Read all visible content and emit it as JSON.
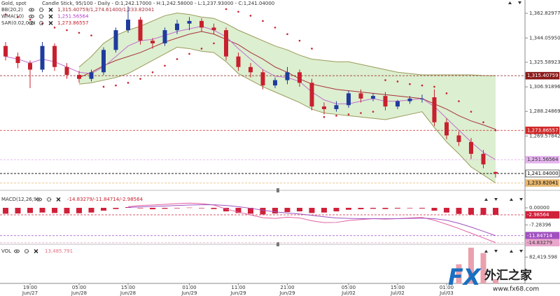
{
  "chart_data": [
    {
      "type": "candlestick",
      "title": "Gold, spot",
      "subtitle": "Candle Stick, 95/100 - Daily - O:1,242.17000 - H:1,242.58000 - L:1,237.93000 - C:1,241.04000",
      "categories": [
        null,
        null,
        [
          "19:00",
          "Jun/27"
        ],
        null,
        null,
        null,
        [
          "05:00",
          "Jun/28"
        ],
        null,
        null,
        null,
        [
          "15:00",
          "Jun/28"
        ],
        null,
        null,
        null,
        null,
        [
          "01:00",
          "Jun/29"
        ],
        null,
        null,
        null,
        [
          "11:00",
          "Jun/29"
        ],
        null,
        null,
        null,
        [
          "21:00",
          "Jun/29"
        ],
        null,
        null,
        null,
        null,
        [
          "05:00",
          "Jul/02"
        ],
        null,
        null,
        null,
        [
          "15:00",
          "Jul/02"
        ],
        null,
        null,
        null,
        [
          "01:00",
          "Jul/03"
        ],
        null,
        null,
        null,
        null
      ],
      "open": [
        1338,
        1330,
        1325,
        1320,
        1338,
        1322,
        1316,
        1313,
        1318,
        1335,
        1350,
        1358,
        1342,
        1340,
        1350,
        1355,
        1357,
        1352,
        1350,
        1330,
        1322,
        1318,
        1308,
        1312,
        1318,
        1310,
        1292,
        1290,
        1293,
        1302,
        1298,
        1300,
        1292,
        1296,
        1298,
        1299,
        1280,
        1270,
        1265,
        1256,
        1242.17
      ],
      "high": [
        1341,
        1333,
        1327,
        1341,
        1340,
        1325,
        1319,
        1320,
        1337,
        1352,
        1368,
        1360,
        1344,
        1352,
        1358,
        1360,
        1359,
        1355,
        1352,
        1333,
        1325,
        1320,
        1314,
        1322,
        1320,
        1313,
        1295,
        1296,
        1304,
        1305,
        1302,
        1303,
        1297,
        1300,
        1301,
        1305,
        1283,
        1273,
        1268,
        1259,
        1242.58
      ],
      "low": [
        1327,
        1321,
        1306,
        1318,
        1319,
        1313,
        1310,
        1311,
        1316,
        1333,
        1348,
        1339,
        1336,
        1338,
        1347,
        1350,
        1349,
        1347,
        1327,
        1319,
        1314,
        1305,
        1306,
        1309,
        1307,
        1289,
        1286,
        1288,
        1291,
        1295,
        1296,
        1289,
        1290,
        1294,
        1295,
        1277,
        1267,
        1262,
        1252,
        1245,
        1237.93
      ],
      "close": [
        1330,
        1325,
        1320,
        1338,
        1322,
        1316,
        1313,
        1318,
        1335,
        1350,
        1358,
        1342,
        1340,
        1350,
        1355,
        1357,
        1352,
        1350,
        1330,
        1322,
        1318,
        1308,
        1312,
        1318,
        1310,
        1292,
        1290,
        1293,
        1302,
        1298,
        1300,
        1292,
        1296,
        1298,
        1298,
        1280,
        1270,
        1265,
        1256,
        1248,
        1241.04
      ],
      "up_color": "#1f3c9c",
      "down_color": "#c8202e",
      "ylim": [
        1230.38,
        1372.94
      ],
      "yticks": [
        {
          "value": 1362.82977,
          "label": "1,362.82977"
        },
        {
          "value": 1344.0595,
          "label": "1,344.05950"
        },
        {
          "value": 1325.58923,
          "label": "1,325.58923"
        },
        {
          "value": 1306.91896,
          "label": "1,306.91896"
        },
        {
          "value": 1288.24869,
          "label": "1,288.24869"
        },
        {
          "value": 1269.57842,
          "label": "1,269.57842"
        }
      ],
      "legend": [
        {
          "name": "BB(20,2)",
          "readout": "1,315.40759/1,274.61400/1,233.82041",
          "color": "#a8323c"
        },
        {
          "name": "WMA(10)",
          "readout": "1,251.56564",
          "color": "#b03cc8"
        },
        {
          "name": "SAR(0.02,0.2)",
          "readout": "1,273.86557",
          "color": "#c8202e"
        }
      ],
      "bands": {
        "fill": "#dcefd0",
        "edge": "#9a9a5a",
        "middle_color": "#a8323c",
        "upper": [
          null,
          null,
          null,
          null,
          null,
          null,
          1322,
          1330,
          1340,
          1346,
          1350,
          1353,
          1357,
          1361,
          1363,
          1362,
          1360,
          1359,
          1355,
          1350,
          1346,
          1342,
          1338,
          1335,
          1331,
          1328,
          1327,
          1326,
          1326,
          1324,
          1322,
          1320,
          1318,
          1317,
          1316,
          1316,
          1316,
          1316,
          1316,
          1315.5,
          1315.40759
        ],
        "middle": [
          null,
          null,
          null,
          null,
          null,
          null,
          1314,
          1318,
          1323,
          1327,
          1330,
          1333,
          1337,
          1341,
          1344,
          1347,
          1349,
          1347,
          1343,
          1339,
          1333,
          1328,
          1322,
          1318,
          1313,
          1309,
          1307,
          1305,
          1304,
          1303,
          1302,
          1301,
          1300,
          1299,
          1298,
          1294,
          1290,
          1285,
          1281,
          1278,
          1274.614
        ],
        "lower": [
          null,
          null,
          null,
          null,
          null,
          null,
          1309,
          1310,
          1312,
          1314,
          1317,
          1322,
          1327,
          1332,
          1337,
          1336,
          1334,
          1333,
          1326,
          1317,
          1312,
          1307,
          1303,
          1299,
          1295,
          1290,
          1287,
          1286,
          1285,
          1284,
          1283,
          1282,
          1284,
          1286,
          1288,
          1276,
          1265,
          1256,
          1246,
          1240,
          1233.82041
        ]
      },
      "lines": [
        {
          "color": "#c070d0",
          "values": [
            1330,
            1328,
            1325,
            1328,
            1326,
            1322,
            1318,
            1317,
            1322,
            1330,
            1338,
            1342,
            1343,
            1346,
            1349,
            1351,
            1353,
            1350,
            1345,
            1336,
            1328,
            1320,
            1315,
            1314,
            1311,
            1303,
            1297,
            1294,
            1294,
            1296,
            1298,
            1296,
            1296,
            1297,
            1298,
            1292,
            1283,
            1274,
            1265,
            1257,
            1251.56564
          ]
        }
      ],
      "dots": {
        "color": "#c8202e",
        "values": [
          1362,
          1360,
          1358,
          1355,
          1352,
          1350,
          1348,
          1346,
          1307,
          1308,
          1310,
          1313,
          1318,
          1323,
          1328,
          1332,
          1336,
          1340,
          1366,
          1364,
          1361,
          1357,
          1352,
          1347,
          1342,
          1336,
          1284,
          1285,
          1286,
          1287,
          1288,
          1312,
          1311,
          1309,
          1308,
          1307,
          1302,
          1296,
          1288,
          1280,
          1273.86557
        ]
      },
      "markers": [
        {
          "value": 1315.40759,
          "label": "1,315.40759",
          "color": "#8b1a1a",
          "text_color": "#ffffff"
        },
        {
          "value": 1273.86557,
          "label": "1,273.86557",
          "color": "#d02828",
          "text_color": "#ffffff"
        },
        {
          "value": 1251.56564,
          "label": "1,251.56564",
          "color": "#e4b4ee",
          "text_color": "#333333"
        },
        {
          "value": 1241.04,
          "label": "1,241.04000",
          "color": "#ffffff",
          "text_color": "#000000",
          "line_color": "#000000"
        },
        {
          "value": 1233.82041,
          "label": "1,233.82041",
          "color": "#e8b870",
          "text_color": "#000000"
        }
      ]
    },
    {
      "type": "bar",
      "title": "MACD(12,26,9)",
      "readout": "-14.83279/-11.84714/-2.98564",
      "readout_color": "#c8202e",
      "color": "#d0203a",
      "values": [
        -2.5,
        -2.4,
        -2.2,
        -2.0,
        -2.2,
        -2.4,
        -2.3,
        -2.0,
        -1.2,
        -0.5,
        0.3,
        -0.2,
        -0.6,
        -0.4,
        -0.2,
        0.1,
        -0.2,
        -0.5,
        -1.5,
        -2.2,
        -2.5,
        -2.8,
        -2.4,
        -1.8,
        -1.5,
        -2.2,
        -2.0,
        -1.5,
        -0.8,
        -0.6,
        -0.4,
        -0.5,
        -0.3,
        -0.2,
        -0.3,
        -1.2,
        -2.0,
        -2.6,
        -2.9,
        -3.0,
        -2.98564
      ],
      "lines": [
        {
          "color": "#e060a0",
          "values": [
            null,
            null,
            null,
            null,
            null,
            null,
            null,
            null,
            null,
            null,
            0.5,
            1.0,
            1.2,
            1.5,
            1.8,
            2.0,
            1.8,
            1.2,
            -0.5,
            -1.8,
            -3.0,
            -4.2,
            -4.5,
            -4.0,
            -4.3,
            -5.5,
            -6.3,
            -6.2,
            -5.4,
            -5.0,
            -4.6,
            -4.8,
            -4.6,
            -4.3,
            -4.1,
            -5.3,
            -7.0,
            -8.8,
            -10.8,
            -12.8,
            -14.83279
          ]
        },
        {
          "color": "#a050c0",
          "values": [
            null,
            null,
            null,
            null,
            null,
            null,
            null,
            null,
            null,
            null,
            0.2,
            0.4,
            0.6,
            0.8,
            1.0,
            1.2,
            1.3,
            1.3,
            1.0,
            0.5,
            -0.2,
            -1.0,
            -1.7,
            -2.2,
            -2.6,
            -3.2,
            -3.8,
            -4.3,
            -4.5,
            -4.6,
            -4.6,
            -4.6,
            -4.6,
            -4.5,
            -4.4,
            -4.6,
            -5.3,
            -6.6,
            -8.2,
            -10.0,
            -11.84714
          ]
        }
      ],
      "ylim": [
        -15.2,
        5.67
      ],
      "yticks": [
        {
          "value": 0,
          "label": "0.00000"
        },
        -7.28396
      ],
      "markers": [
        {
          "value": -2.98564,
          "label": "-2.98564",
          "color": "#d0203a",
          "text_color": "#ffffff"
        },
        {
          "value": -11.84714,
          "label": "-11.84714",
          "color": "#a050c0",
          "text_color": "#ffffff"
        },
        {
          "value": -14.83279,
          "label": "-14.83279",
          "color": "#eaa6cc",
          "text_color": "#333333"
        }
      ]
    },
    {
      "type": "bar",
      "title": "VOL",
      "readout": "13,485.791",
      "readout_color": "#e07080",
      "color": "#eba0ae",
      "values": [
        null,
        null,
        null,
        null,
        null,
        null,
        null,
        null,
        null,
        null,
        null,
        null,
        null,
        null,
        null,
        null,
        null,
        null,
        null,
        null,
        null,
        null,
        null,
        null,
        null,
        null,
        null,
        null,
        null,
        null,
        null,
        null,
        null,
        null,
        null,
        null,
        null,
        60000,
        112000,
        95000,
        13485.791
      ],
      "ylim": [
        0,
        116230
      ],
      "yticks": [
        {
          "value": 82419.598,
          "label": "82,419.598"
        }
      ]
    }
  ],
  "watermark": {
    "brand": "FX",
    "name": "外汇之家",
    "url": "www.fx68.com"
  }
}
